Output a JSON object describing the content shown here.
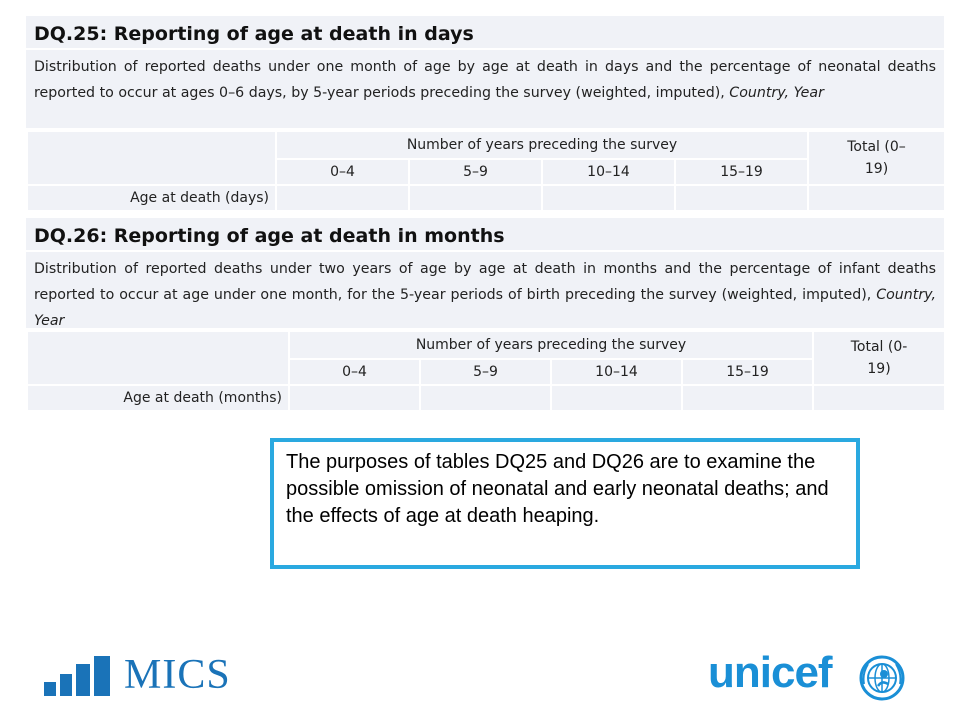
{
  "dq25": {
    "title": "DQ.25: Reporting of age at death in days",
    "description": "Distribution of reported deaths under one month of age by age at death in days and the percentage of neonatal deaths reported to occur at ages 0–6 days, by 5-year periods preceding the survey (weighted, imputed), ",
    "description_italic": "Country, Year",
    "group_header": "Number of years preceding the survey",
    "total_header": "Total (0–19)",
    "periods": [
      "0–4",
      "5–9",
      "10–14",
      "15–19"
    ],
    "row_label": "Age at death (days)"
  },
  "dq26": {
    "title": "DQ.26: Reporting of age at death in months",
    "description": "Distribution of reported deaths under two years of age by age at death in months and the percentage of infant deaths reported to occur at age under one month, for the 5-year periods of birth preceding the survey (weighted, imputed), ",
    "description_italic": "Country, Year",
    "group_header": "Number of years preceding the survey",
    "total_header": "Total (0-19)",
    "periods": [
      "0–4",
      "5–9",
      "10–14",
      "15–19"
    ],
    "row_label": "Age at death (months)"
  },
  "note": {
    "text": "The purposes of tables DQ25 and DQ26 are to examine the possible omission of neonatal and early neonatal deaths; and the effects of age at death heaping."
  },
  "logos": {
    "mics": "MICS",
    "unicef": "unicef",
    "mics_color": "#1a73b8",
    "unicef_color": "#1a8fd6"
  },
  "colors": {
    "cell_background": "#f0f2f7",
    "note_border": "#2aa9e0"
  }
}
